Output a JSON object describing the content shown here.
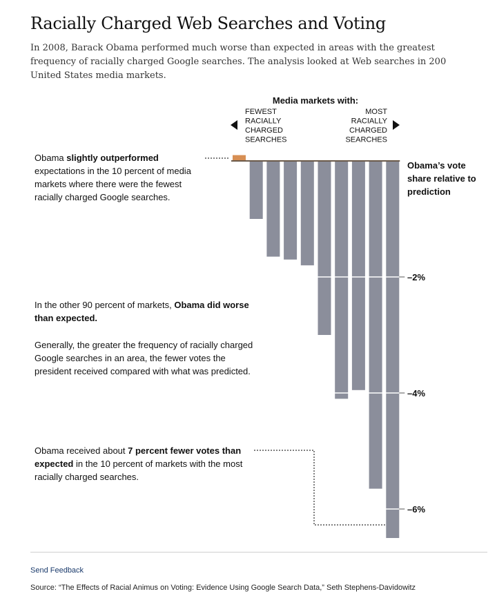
{
  "title": "Racially Charged Web Searches and Voting",
  "subtitle": "In 2008, Barack Obama performed much worse than expected in areas with the greatest frequency of racially charged Google searches. The analysis looked at Web searches in 200 United States media markets.",
  "annotations": {
    "a1": {
      "pre": "Obama ",
      "bold": "slightly outperformed",
      "post": " expectations in the 10 percent of media markets where there were the fewest racially charged Google searches."
    },
    "a2": {
      "pre": "In the other 90 percent of markets, ",
      "bold": "Obama did worse than expected.",
      "post": ""
    },
    "a3": {
      "text": "Generally, the greater the frequency of racially charged Google searches in an area, the fewer votes the president received compared with what was predicted."
    },
    "a4": {
      "pre": "Obama received about ",
      "bold": "7 percent fewer votes than expected",
      "post": " in the 10 percent of markets with the most racially charged searches."
    }
  },
  "footer": {
    "feedback": "Send Feedback",
    "source": "Source: “The Effects of Racial Animus on Voting: Evidence Using Google Search Data,” Seth Stephens-Davidowitz"
  },
  "chart_data": {
    "type": "bar",
    "header": "Media markets with:",
    "left_label": [
      "FEWEST",
      "RACIALLY",
      "CHARGED",
      "SEARCHES"
    ],
    "right_label": [
      "MOST",
      "RACIALLY",
      "CHARGED",
      "SEARCHES"
    ],
    "ylabel": [
      "Obama’s vote",
      "share relative to",
      "prediction"
    ],
    "y_ticks": [
      {
        "value": -2,
        "label": "–2%"
      },
      {
        "value": -4,
        "label": "–4%"
      },
      {
        "value": -6,
        "label": "–6%"
      }
    ],
    "ylim": [
      -6.5,
      0.1
    ],
    "values": [
      0.1,
      -1.0,
      -1.65,
      -1.7,
      -1.8,
      -3.0,
      -4.1,
      -3.95,
      -5.65,
      -6.5
    ],
    "colors": {
      "positive": "#d78f54",
      "negative": "#8b8e9b",
      "baseline": "#6b5a4a",
      "leader": "#555555"
    }
  }
}
